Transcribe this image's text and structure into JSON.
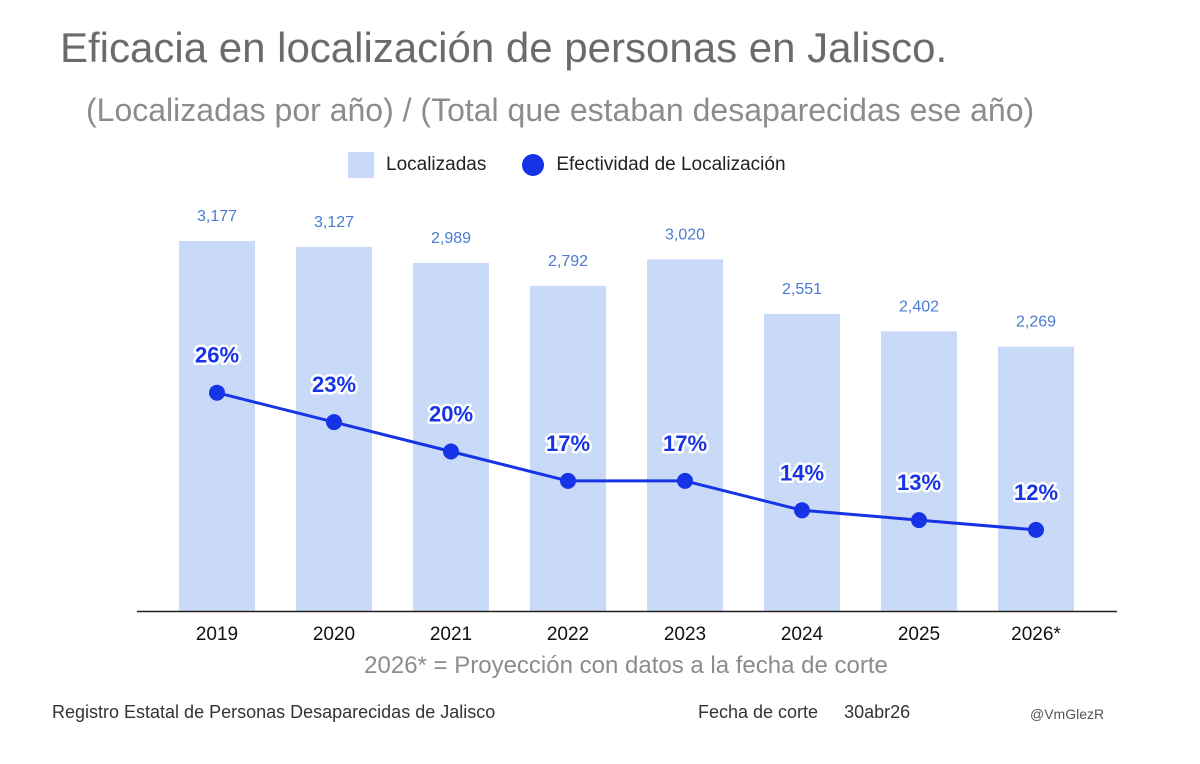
{
  "title": "Eficacia en localización de personas en Jalisco.",
  "subtitle": "(Localizadas por año) / (Total que estaban desaparecidas ese año)",
  "footnote": "2026* = Proyección con datos a la fecha de corte",
  "source": "Registro Estatal de Personas Desaparecidas de Jalisco",
  "cutoff_label": "Fecha de corte",
  "cutoff_value": "30abr26",
  "handle": "@VmGlezR",
  "chart_data": {
    "type": "bar",
    "categories": [
      "2019",
      "2020",
      "2021",
      "2022",
      "2023",
      "2024",
      "2025",
      "2026*"
    ],
    "series": [
      {
        "name": "Localizadas",
        "type": "bar",
        "values": [
          3177,
          3127,
          2989,
          2792,
          3020,
          2551,
          2402,
          2269
        ],
        "labels": [
          "3,177",
          "3,127",
          "2,989",
          "2,792",
          "3,020",
          "2,551",
          "2,402",
          "2,269"
        ],
        "color": "#c9daf8",
        "label_color": "#4a7bd0"
      },
      {
        "name": "Efectividad de Localización",
        "type": "line",
        "values": [
          26,
          23,
          20,
          17,
          17,
          14,
          13,
          12
        ],
        "labels": [
          "26%",
          "23%",
          "20%",
          "17%",
          "17%",
          "14%",
          "13%",
          "12%"
        ],
        "color": "#1634e6"
      }
    ],
    "legend_position": "top",
    "grid": false
  }
}
